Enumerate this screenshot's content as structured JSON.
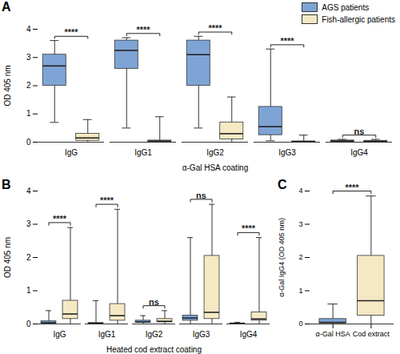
{
  "chart_data": [
    {
      "type": "box",
      "title": "A",
      "x_label": "α-Gal HSA coating",
      "y_label": "OD 405 nm",
      "categories": [
        "IgG",
        "IgG1",
        "IgG2",
        "IgG3",
        "IgG4"
      ],
      "ylim": [
        0,
        4
      ],
      "yticks": [
        0,
        1,
        2,
        3,
        4
      ],
      "grid": false,
      "legend": "top-right",
      "series": [
        {
          "name": "AGS patients",
          "color": "#7ea4d6",
          "values": [
            {
              "min": 0.7,
              "q1": 2.0,
              "median": 2.7,
              "q3": 3.1,
              "max": 3.6
            },
            {
              "min": 0.5,
              "q1": 2.6,
              "median": 3.25,
              "q3": 3.6,
              "max": 3.7
            },
            {
              "min": 0.5,
              "q1": 2.0,
              "median": 3.1,
              "q3": 3.6,
              "max": 3.75
            },
            {
              "min": 0.05,
              "q1": 0.25,
              "median": 0.55,
              "q3": 1.25,
              "max": 3.3
            },
            {
              "min": 0,
              "q1": 0.02,
              "median": 0.04,
              "q3": 0.06,
              "max": 0.1
            }
          ]
        },
        {
          "name": "Fish-allergic patients",
          "color": "#f5e9c4",
          "values": [
            {
              "min": 0,
              "q1": 0.05,
              "median": 0.15,
              "q3": 0.3,
              "max": 0.8
            },
            {
              "min": 0,
              "q1": 0.02,
              "median": 0.04,
              "q3": 0.06,
              "max": 0.9
            },
            {
              "min": 0,
              "q1": 0.1,
              "median": 0.3,
              "q3": 0.7,
              "max": 1.6
            },
            {
              "min": 0,
              "q1": 0.01,
              "median": 0.02,
              "q3": 0.03,
              "max": 0.25
            },
            {
              "min": 0,
              "q1": 0.02,
              "median": 0.03,
              "q3": 0.05,
              "max": 0.1
            }
          ]
        }
      ],
      "significance": [
        "****",
        "****",
        "****",
        "****",
        "ns"
      ]
    },
    {
      "type": "box",
      "title": "B",
      "x_label": "Heated cod extract coating",
      "y_label": "OD 405 nm",
      "categories": [
        "IgG",
        "IgG1",
        "IgG2",
        "IgG3",
        "IgG4"
      ],
      "ylim": [
        0,
        4
      ],
      "yticks": [
        0,
        1,
        2,
        3,
        4
      ],
      "grid": false,
      "series": [
        {
          "name": "AGS patients",
          "color": "#7ea4d6",
          "values": [
            {
              "min": 0,
              "q1": 0.02,
              "median": 0.04,
              "q3": 0.08,
              "max": 0.4
            },
            {
              "min": 0,
              "q1": 0.01,
              "median": 0.02,
              "q3": 0.03,
              "max": 0.7
            },
            {
              "min": 0,
              "q1": 0.04,
              "median": 0.06,
              "q3": 0.1,
              "max": 0.25
            },
            {
              "min": 0,
              "q1": 0.1,
              "median": 0.18,
              "q3": 0.25,
              "max": 2.6
            },
            {
              "min": 0,
              "q1": 0.005,
              "median": 0.01,
              "q3": 0.02,
              "max": 0.05
            }
          ]
        },
        {
          "name": "Fish-allergic patients",
          "color": "#f5e9c4",
          "values": [
            {
              "min": 0,
              "q1": 0.15,
              "median": 0.3,
              "q3": 0.7,
              "max": 2.9
            },
            {
              "min": 0,
              "q1": 0.1,
              "median": 0.25,
              "q3": 0.6,
              "max": 3.45
            },
            {
              "min": 0,
              "q1": 0.05,
              "median": 0.08,
              "q3": 0.15,
              "max": 0.4
            },
            {
              "min": 0,
              "q1": 0.15,
              "median": 0.35,
              "q3": 2.05,
              "max": 3.6
            },
            {
              "min": 0,
              "q1": 0.1,
              "median": 0.15,
              "q3": 0.35,
              "max": 2.6
            }
          ]
        }
      ],
      "significance": [
        "****",
        "****",
        "ns",
        "ns",
        "****"
      ]
    },
    {
      "type": "box",
      "title": "C",
      "y_label": "α-Gal IgG4 (OD 405 nm)",
      "categories": [
        "α-Gal HSA",
        "Cod extract"
      ],
      "ylim": [
        0,
        4
      ],
      "yticks": [
        0,
        1,
        2,
        3,
        4
      ],
      "grid": false,
      "colors": [
        "#7ea4d6",
        "#f5e9c4"
      ],
      "values": [
        {
          "min": 0,
          "q1": 0.02,
          "median": 0.05,
          "q3": 0.15,
          "max": 0.6
        },
        {
          "min": 0,
          "q1": 0.25,
          "median": 0.7,
          "q3": 2.05,
          "max": 3.85
        }
      ],
      "significance": [
        "****"
      ]
    }
  ]
}
